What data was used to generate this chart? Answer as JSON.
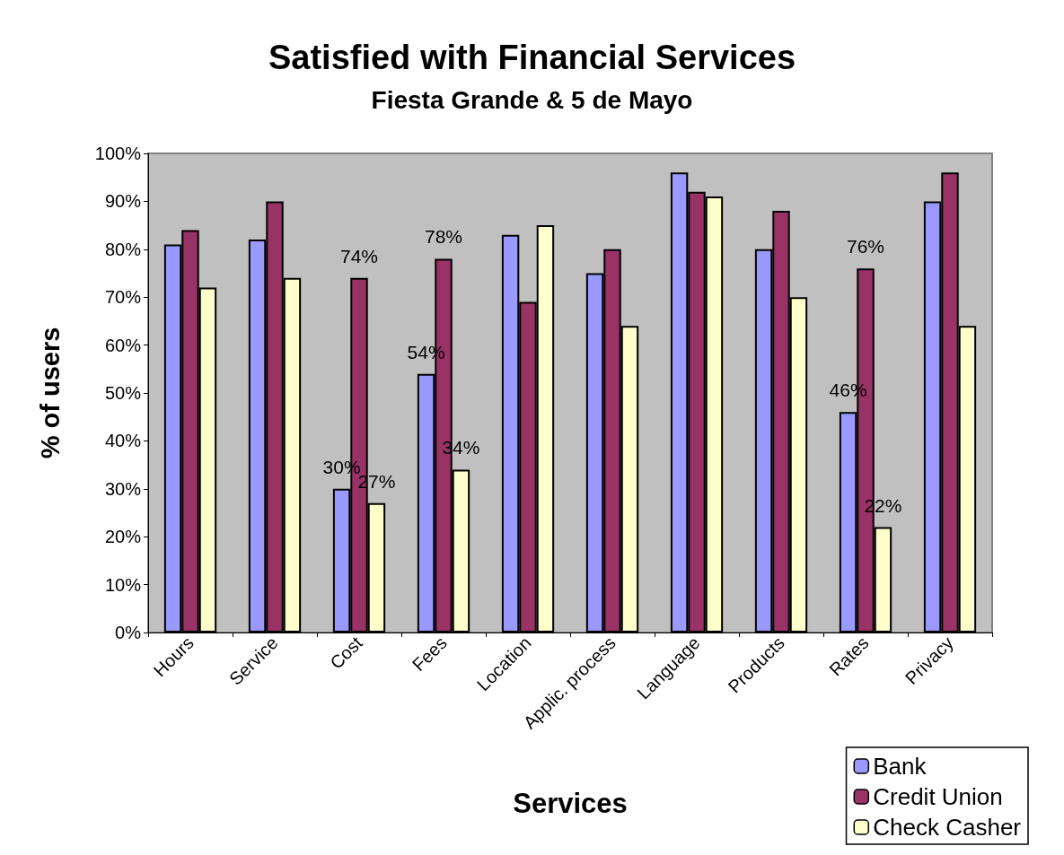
{
  "chart_data": {
    "type": "bar",
    "title": "Satisfied with Financial Services",
    "subtitle": "Fiesta Grande & 5 de Mayo",
    "xlabel": "Services",
    "ylabel": "% of users",
    "categories": [
      "Hours",
      "Service",
      "Cost",
      "Fees",
      "Location",
      "Applic. process",
      "Language",
      "Products",
      "Rates",
      "Privacy"
    ],
    "series": [
      {
        "name": "Bank",
        "color": "#9999ff",
        "values": [
          81,
          82,
          30,
          54,
          83,
          75,
          96,
          80,
          46,
          90
        ],
        "value_labels": [
          null,
          null,
          "30%",
          "54%",
          null,
          null,
          null,
          null,
          "46%",
          null
        ]
      },
      {
        "name": "Credit Union",
        "color": "#993366",
        "values": [
          84,
          90,
          74,
          78,
          69,
          80,
          92,
          88,
          76,
          96
        ],
        "value_labels": [
          null,
          null,
          "74%",
          "78%",
          null,
          null,
          null,
          null,
          "76%",
          null
        ]
      },
      {
        "name": "Check Casher",
        "color": "#ffffcc",
        "values": [
          72,
          74,
          27,
          34,
          85,
          64,
          91,
          70,
          22,
          64
        ],
        "value_labels": [
          null,
          null,
          "27%",
          "34%",
          null,
          null,
          null,
          null,
          "22%",
          null
        ]
      }
    ],
    "ylim": [
      0,
      100
    ],
    "yticks": [
      {
        "value": 0,
        "label": "0%"
      },
      {
        "value": 10,
        "label": "10%"
      },
      {
        "value": 20,
        "label": "20%"
      },
      {
        "value": 30,
        "label": "30%"
      },
      {
        "value": 40,
        "label": "40%"
      },
      {
        "value": 50,
        "label": "50%"
      },
      {
        "value": 60,
        "label": "60%"
      },
      {
        "value": 70,
        "label": "70%"
      },
      {
        "value": 80,
        "label": "80%"
      },
      {
        "value": 90,
        "label": "90%"
      },
      {
        "value": 100,
        "label": "100%"
      }
    ],
    "grid": false,
    "legend": "bottom right"
  }
}
